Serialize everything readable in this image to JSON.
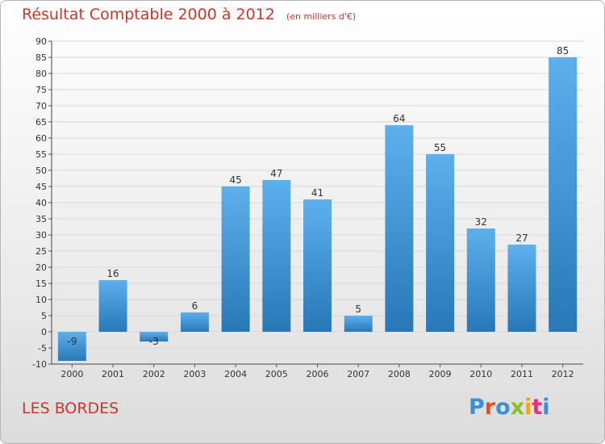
{
  "header": {
    "title": "Résultat Comptable 2000 à 2012",
    "subtitle": "(en milliers d'€)"
  },
  "footer": {
    "commune": "LES BORDES",
    "logo": "Proxiti",
    "logo_colors": [
      "#3b8fd4",
      "#e84e1b",
      "#3b8fd4",
      "#8cbf26",
      "#f3a712",
      "#e8307a",
      "#3b8fd4"
    ]
  },
  "colors": {
    "bar_light": "#5cb0ec",
    "bar_dark": "#2878b8",
    "text": "#333333",
    "accent": "#c8372d",
    "grid": "#d8d8d8"
  },
  "chart_data": {
    "type": "bar",
    "title": "Résultat Comptable 2000 à 2012",
    "subtitle": "(en milliers d'€)",
    "xlabel": "",
    "ylabel": "",
    "categories": [
      "2000",
      "2001",
      "2002",
      "2003",
      "2004",
      "2005",
      "2006",
      "2007",
      "2008",
      "2009",
      "2010",
      "2011",
      "2012"
    ],
    "values": [
      -9,
      16,
      -3,
      6,
      45,
      47,
      41,
      5,
      64,
      55,
      32,
      27,
      85
    ],
    "value_labels": [
      "-9",
      "16",
      "-3",
      "6",
      "45",
      "47",
      "41",
      "5",
      "64",
      "55",
      "32",
      "27",
      "85"
    ],
    "ylim": [
      -10,
      90
    ],
    "yticks": [
      -10,
      -5,
      0,
      5,
      10,
      15,
      20,
      25,
      30,
      35,
      40,
      45,
      50,
      55,
      60,
      65,
      70,
      75,
      80,
      85,
      90
    ],
    "grid": true,
    "legend": "none"
  }
}
